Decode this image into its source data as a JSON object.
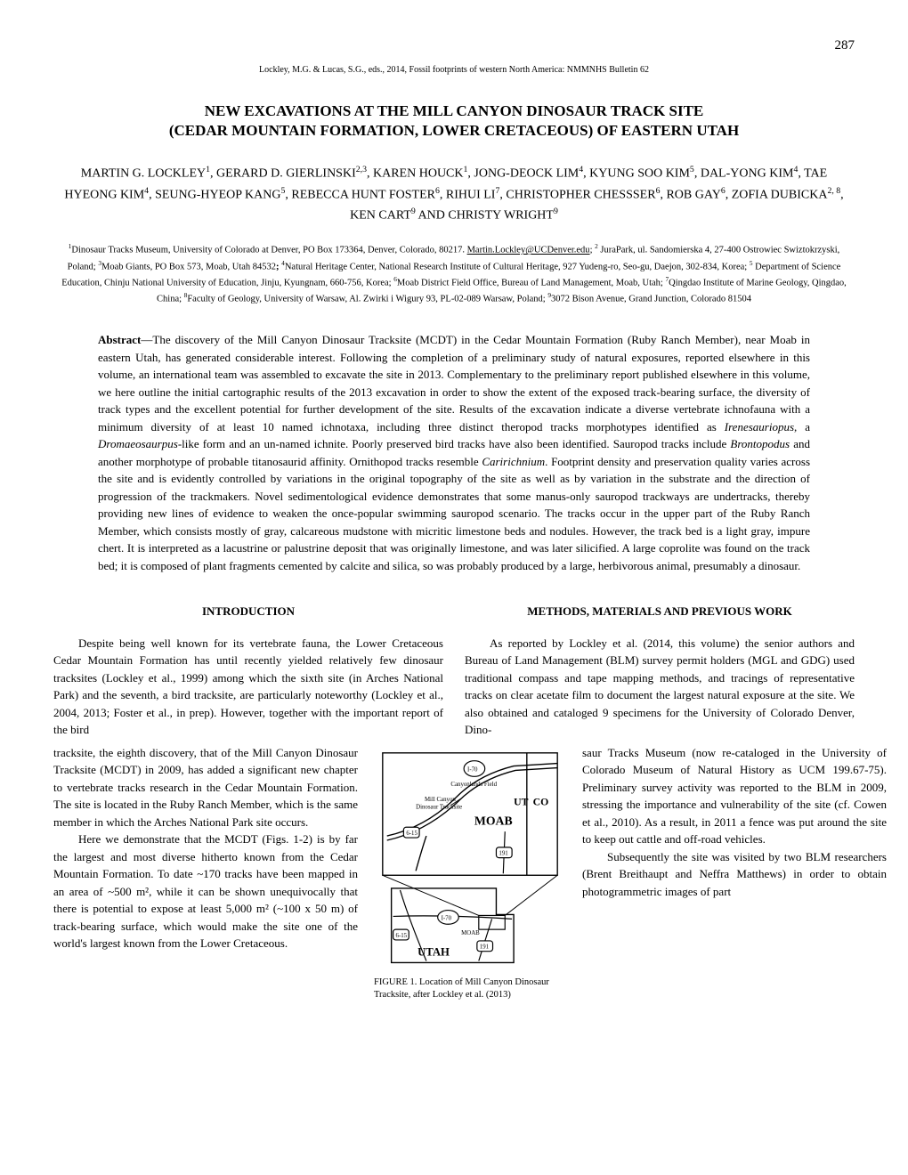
{
  "page_number": "287",
  "header_citation": "Lockley, M.G. & Lucas, S.G., eds., 2014, Fossil footprints of western North America: NMMNHS Bulletin 62",
  "title_line1": "NEW EXCAVATIONS AT THE MILL CANYON DINOSAUR TRACK SITE",
  "title_line2": "(CEDAR MOUNTAIN FORMATION, LOWER CRETACEOUS) OF EASTERN UTAH",
  "authors_html": "MARTIN G. LOCKLEY<sup>1</sup>, GERARD D. GIERLINSKI<sup>2,3</sup>, KAREN HOUCK<sup>1</sup>, JONG-DEOCK LIM<sup>4</sup>, KYUNG SOO KIM<sup>5</sup>, DAL-YONG KIM<sup>4</sup>, TAE HYEONG KIM<sup>4</sup>, SEUNG-HYEOP KANG<sup>5</sup>, REBECCA HUNT FOSTER<sup>6</sup>, RIHUI LI<sup>7</sup>, CHRISTOPHER CHESSSER<sup>6</sup>, ROB GAY<sup>6</sup>, ZOFIA DUBICKA<sup>2, 8</sup>, KEN CART<sup>9</sup> AND CHRISTY WRIGHT<sup>9</sup>",
  "affiliations_html": "<sup>1</sup>Dinosaur Tracks Museum, University of Colorado at Denver, PO Box 173364, Denver, Colorado, 80217. <span class=\"underline\">Martin.Lockley@UCDenver.edu</span>; <sup>2</sup> JuraPark, ul. Sandomierska 4, 27-400 Ostrowiec Swiztokrzyski, Poland; <sup>3</sup>Moab Giants, PO Box 573, Moab, Utah 84532<b>;</b> <sup>4</sup>Natural Heritage Center, National Research Institute of Cultural Heritage, 927 Yudeng-ro, Seo-gu, Daejon, 302-834, Korea; <sup>5</sup> Department of Science Education, Chinju National University of Education, Jinju, Kyungnam, 660-756, Korea; <sup>6</sup>Moab District Field Office, Bureau of Land Management, Moab, Utah; <sup>7</sup>Qingdao Institute of Marine Geology, Qingdao, China; <sup>8</sup>Faculty of Geology, University of Warsaw, Al. Zwirki i Wigury 93, PL-02-089 Warsaw, Poland; <sup>9</sup>3072 Bison Avenue, Grand Junction, Colorado 81504",
  "abstract_label": "Abstract",
  "abstract_text": "—The discovery of the Mill Canyon Dinosaur Tracksite (MCDT) in the Cedar Mountain Formation (Ruby Ranch Member), near Moab in eastern Utah, has generated considerable interest. Following the completion of a preliminary study of natural exposures, reported elsewhere in this volume, an international team was assembled to excavate the site in 2013. Complementary to the preliminary report published elsewhere in this volume, we here outline the initial cartographic results of the 2013 excavation in order to show the extent of the exposed track-bearing surface, the diversity of track types and the excellent potential for further development of the site. Results of the excavation indicate a diverse vertebrate ichnofauna with a minimum diversity of at least 10 named ichnotaxa, including three distinct theropod tracks morphotypes identified as <span class=\"italic\">Irenesauriopus</span>, a <span class=\"italic\">Dromaeosaurpus</span>-like form and an un-named ichnite. Poorly preserved bird tracks have also been identified. Sauropod tracks include <span class=\"italic\">Brontopodus</span> and another morphotype of probable titanosaurid affinity. Ornithopod tracks resemble <span class=\"italic\">Caririchnium</span>. Footprint density and preservation quality varies across the site and is evidently controlled by variations in the original topography of the site as well as by variation in the substrate and the direction of progression of the trackmakers. Novel sedimentological evidence demonstrates that some manus-only sauropod trackways are undertracks, thereby providing new lines of evidence to weaken the once-popular swimming sauropod scenario. The tracks occur in the upper part of the Ruby Ranch Member, which consists mostly of gray, calcareous mudstone with micritic limestone beds and nodules. However, the track bed is a light gray, impure chert. It is interpreted as a lacustrine or palustrine deposit that was originally limestone, and was later silicified. A large coprolite was found on the track bed; it is composed of plant fragments cemented by calcite and silica, so was probably produced by a large, herbivorous animal, presumably a dinosaur.",
  "section_intro": "INTRODUCTION",
  "intro_p1": "Despite being well known for its vertebrate fauna, the Lower Cretaceous Cedar Mountain Formation has until recently yielded relatively few dinosaur tracksites (Lockley et al., 1999) among which the sixth site (in Arches National Park) and the seventh, a bird tracksite, are particularly noteworthy (Lockley et al., 2004, 2013; Foster et al., in prep). However, together with the important report of the bird",
  "intro_p2": "tracksite, the eighth discovery, that of the Mill Canyon Dinosaur Tracksite (MCDT) in 2009, has added a significant new chapter to vertebrate tracks research in the Cedar Mountain Formation. The site is located in the Ruby Ranch Member, which is the same member in which the Arches National Park site occurs.",
  "intro_p3": "Here we demonstrate that the MCDT (Figs. 1-2) is by far the largest and most diverse hitherto known from the Cedar Mountain Formation. To date ~170 tracks have been mapped in an area of ~500 m², while it can be shown unequivocally that there is potential to expose at least 5,000 m² (~100 x 50 m) of track-bearing surface, which would make the site one of the world's largest known from the Lower Cretaceous.",
  "section_methods": "METHODS, MATERIALS AND PREVIOUS WORK",
  "methods_p1": "As reported by Lockley et al. (2014, this volume) the senior authors and Bureau of Land Management (BLM) survey permit holders (MGL and GDG) used traditional compass and tape mapping methods, and tracings of representative tracks on clear acetate film to document the largest natural exposure at the site. We also obtained and cataloged 9 specimens for the University of Colorado Denver, Dino-",
  "methods_p2": "saur Tracks Museum (now re-cataloged in the University of Colorado Museum of Natural History as UCM 199.67-75). Preliminary survey activity was reported to the BLM in 2009, stressing the importance and vulnerability of the site (cf. Cowen et al., 2010). As a result, in 2011 a fence was put around the site to keep out cattle and off-road vehicles.",
  "methods_p3": "Subsequently the site was visited by two BLM researchers (Brent Breithaupt and Neffra Matthews) in order to obtain photogrammetric images of part",
  "figure_caption": "FIGURE 1. Location of Mill Canyon Dinosaur Tracksite, after Lockley et al. (2013)",
  "map": {
    "labels": {
      "state_ut": "UT",
      "state_co": "CO",
      "city": "MOAB",
      "inset_moab": "MOAB",
      "inset_utah": "UTAH",
      "field": "Canyonlands Field",
      "tracksite_l1": "Mill Canyon",
      "tracksite_l2": "Dinosaur Tracksite",
      "hwy_i70_a": "I-70",
      "hwy_i70_b": "I-70",
      "hwy_615": "6-15",
      "hwy_615b": "6-15",
      "hwy_191a": "191",
      "hwy_191b": "191"
    },
    "colors": {
      "stroke": "#000000",
      "fill": "#ffffff",
      "text": "#000000"
    },
    "line_width": 1.4,
    "font_main": "12",
    "font_small": "8",
    "font_tiny": "7"
  }
}
